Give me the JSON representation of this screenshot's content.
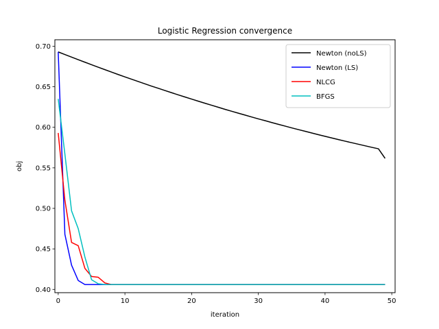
{
  "chart_data": {
    "type": "line",
    "title": "Logistic Regression convergence",
    "xlabel": "iteration",
    "ylabel": "obj",
    "xlim": [
      -0.5,
      50.5
    ],
    "ylim": [
      0.396,
      0.708
    ],
    "xticks": [
      0,
      10,
      20,
      30,
      40,
      50
    ],
    "xtick_labels": [
      "0",
      "10",
      "20",
      "30",
      "40",
      "50"
    ],
    "yticks": [
      0.4,
      0.45,
      0.5,
      0.55,
      0.6,
      0.65,
      0.7
    ],
    "ytick_labels": [
      "0.40",
      "0.45",
      "0.50",
      "0.55",
      "0.60",
      "0.65",
      "0.70"
    ],
    "grid": false,
    "legend_position": "upper right",
    "series": [
      {
        "name": "Newton (noLS)",
        "color": "#000000",
        "x": [
          0,
          1,
          2,
          3,
          4,
          5,
          6,
          7,
          8,
          9,
          10,
          11,
          12,
          13,
          14,
          15,
          16,
          17,
          18,
          19,
          20,
          21,
          22,
          23,
          24,
          25,
          26,
          27,
          28,
          29,
          30,
          31,
          32,
          33,
          34,
          35,
          36,
          37,
          38,
          39,
          40,
          41,
          42,
          43,
          44,
          45,
          45,
          46,
          47,
          48,
          49
        ],
        "y": [
          0.693,
          0.6898,
          0.6866,
          0.6834,
          0.6803,
          0.6772,
          0.6741,
          0.6711,
          0.6681,
          0.6651,
          0.6622,
          0.6593,
          0.6565,
          0.6536,
          0.6508,
          0.6481,
          0.6454,
          0.6427,
          0.64,
          0.6374,
          0.6348,
          0.6322,
          0.6297,
          0.6272,
          0.6247,
          0.6222,
          0.6198,
          0.6174,
          0.6151,
          0.6127,
          0.6104,
          0.6082,
          0.6059,
          0.6037,
          0.6015,
          0.5993,
          0.5972,
          0.5951,
          0.593,
          0.5909,
          0.5889,
          0.5869,
          0.5849,
          0.5829,
          0.581,
          0.5791,
          0.5791,
          0.5772,
          0.5753,
          0.5735,
          0.5617
        ]
      },
      {
        "name": "Newton (LS)",
        "color": "#0000ff",
        "x": [
          0,
          1,
          2,
          3,
          4,
          5,
          6,
          7,
          8,
          9,
          10,
          20,
          30,
          40,
          49
        ],
        "y": [
          0.693,
          0.468,
          0.43,
          0.411,
          0.406,
          0.406,
          0.406,
          0.406,
          0.406,
          0.406,
          0.406,
          0.406,
          0.406,
          0.406,
          0.406
        ]
      },
      {
        "name": "NLCG",
        "color": "#ff0000",
        "x": [
          0,
          1,
          2,
          3,
          4,
          5,
          6,
          7,
          8,
          9,
          10,
          20,
          30,
          40,
          49
        ],
        "y": [
          0.593,
          0.51,
          0.458,
          0.454,
          0.426,
          0.416,
          0.415,
          0.408,
          0.406,
          0.406,
          0.406,
          0.406,
          0.406,
          0.406,
          0.406
        ]
      },
      {
        "name": "BFGS",
        "color": "#00bfbf",
        "x": [
          0,
          1,
          2,
          3,
          4,
          5,
          6,
          7,
          8,
          9,
          10,
          20,
          30,
          40,
          49
        ],
        "y": [
          0.635,
          0.567,
          0.497,
          0.475,
          0.44,
          0.412,
          0.407,
          0.406,
          0.406,
          0.406,
          0.406,
          0.406,
          0.406,
          0.406,
          0.406
        ]
      }
    ]
  }
}
